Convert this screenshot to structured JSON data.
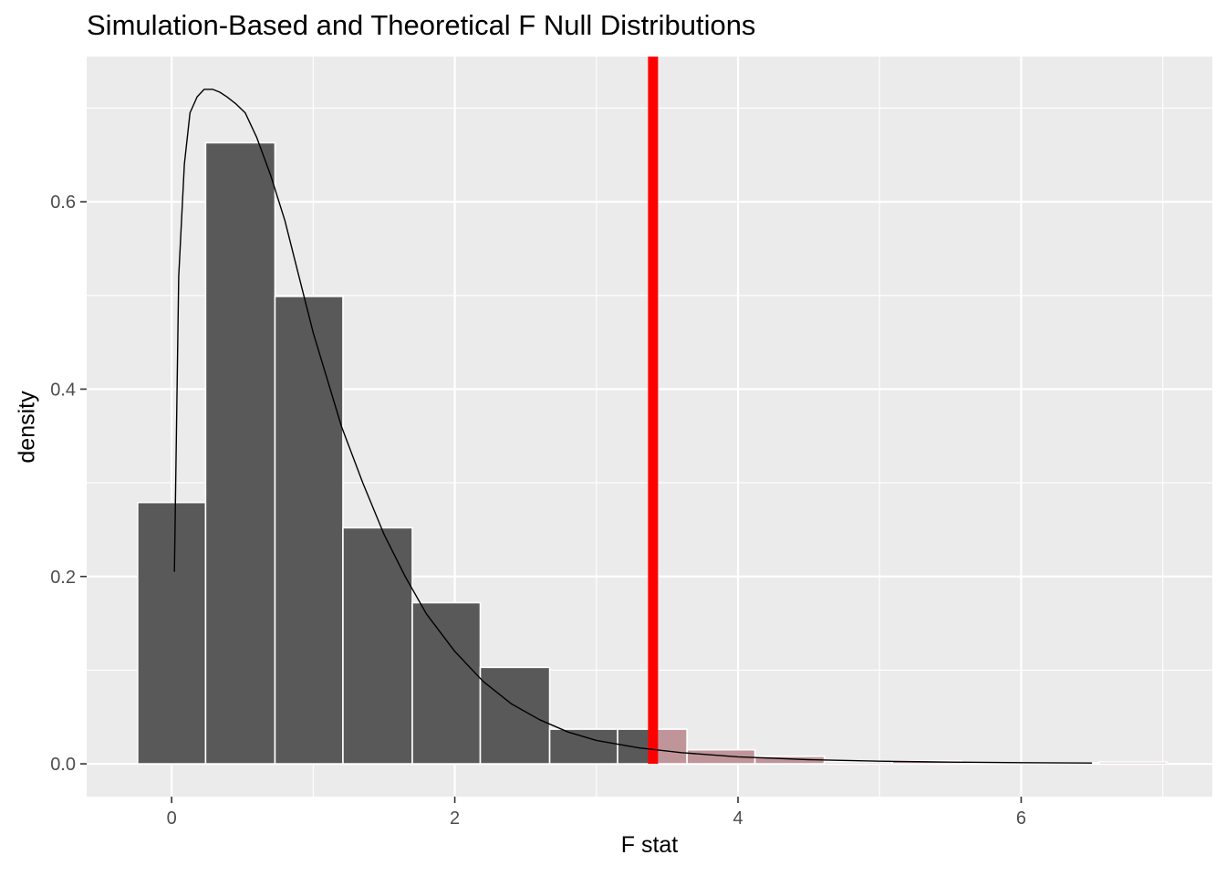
{
  "chart_data": {
    "type": "bar",
    "title": "Simulation-Based and Theoretical F Null Distributions",
    "xlabel": "F stat",
    "ylabel": "density",
    "xlim": [
      -0.6,
      7.35
    ],
    "ylim": [
      -0.035,
      0.755
    ],
    "x_ticks": [
      0,
      2,
      4,
      6
    ],
    "x_tick_labels": [
      "0",
      "2",
      "4",
      "6"
    ],
    "y_ticks": [
      0.0,
      0.2,
      0.4,
      0.6
    ],
    "y_tick_labels": [
      "0.0",
      "0.2",
      "0.4",
      "0.6"
    ],
    "grid": true,
    "histogram": {
      "name": "simulation-based null distribution",
      "bins": [
        {
          "x0": -0.24,
          "x1": 0.24,
          "density": 0.279,
          "shaded": false
        },
        {
          "x0": 0.24,
          "x1": 0.73,
          "density": 0.663,
          "shaded": false
        },
        {
          "x0": 0.73,
          "x1": 1.21,
          "density": 0.499,
          "shaded": false
        },
        {
          "x0": 1.21,
          "x1": 1.7,
          "density": 0.252,
          "shaded": false
        },
        {
          "x0": 1.7,
          "x1": 2.18,
          "density": 0.172,
          "shaded": false
        },
        {
          "x0": 2.18,
          "x1": 2.67,
          "density": 0.103,
          "shaded": false
        },
        {
          "x0": 2.67,
          "x1": 3.15,
          "density": 0.037,
          "shaded": false
        },
        {
          "x0": 3.15,
          "x1": 3.4,
          "density": 0.037,
          "shaded": false
        },
        {
          "x0": 3.4,
          "x1": 3.64,
          "density": 0.037,
          "shaded": true
        },
        {
          "x0": 3.64,
          "x1": 4.12,
          "density": 0.015,
          "shaded": true
        },
        {
          "x0": 4.12,
          "x1": 4.61,
          "density": 0.008,
          "shaded": true
        },
        {
          "x0": 4.61,
          "x1": 5.09,
          "density": 0.002,
          "shaded": true
        },
        {
          "x0": 5.09,
          "x1": 5.58,
          "density": 0.003,
          "shaded": true
        },
        {
          "x0": 5.58,
          "x1": 6.06,
          "density": 0.001,
          "shaded": true
        },
        {
          "x0": 6.06,
          "x1": 6.55,
          "density": 0.001,
          "shaded": true
        },
        {
          "x0": 6.55,
          "x1": 7.03,
          "density": 0.002,
          "shaded": true
        }
      ]
    },
    "theoretical_curve": {
      "name": "theoretical F density",
      "x": [
        0.02,
        0.05,
        0.09,
        0.13,
        0.18,
        0.23,
        0.29,
        0.34,
        0.39,
        0.45,
        0.52,
        0.6,
        0.7,
        0.8,
        0.9,
        1.0,
        1.1,
        1.2,
        1.35,
        1.5,
        1.65,
        1.8,
        2.0,
        2.2,
        2.4,
        2.6,
        2.8,
        3.0,
        3.3,
        3.6,
        4.0,
        4.5,
        5.0,
        5.5,
        6.0,
        6.5
      ],
      "y": [
        0.205,
        0.52,
        0.64,
        0.695,
        0.712,
        0.72,
        0.72,
        0.717,
        0.712,
        0.705,
        0.695,
        0.669,
        0.628,
        0.58,
        0.52,
        0.46,
        0.41,
        0.36,
        0.3,
        0.245,
        0.2,
        0.16,
        0.12,
        0.088,
        0.064,
        0.047,
        0.034,
        0.025,
        0.017,
        0.012,
        0.0075,
        0.0045,
        0.0028,
        0.0018,
        0.0012,
        0.0008
      ]
    },
    "observed_stat": {
      "x": 3.4,
      "color": "#ff0000"
    },
    "colors": {
      "panel_background": "#ebebeb",
      "grid": "#ffffff",
      "bar_fill": "#595959",
      "bar_outline": "#ffffff",
      "shaded_fill": "#c0959a",
      "curve": "#000000",
      "tick_label": "#4d4d4d",
      "tick": "#333333"
    }
  }
}
